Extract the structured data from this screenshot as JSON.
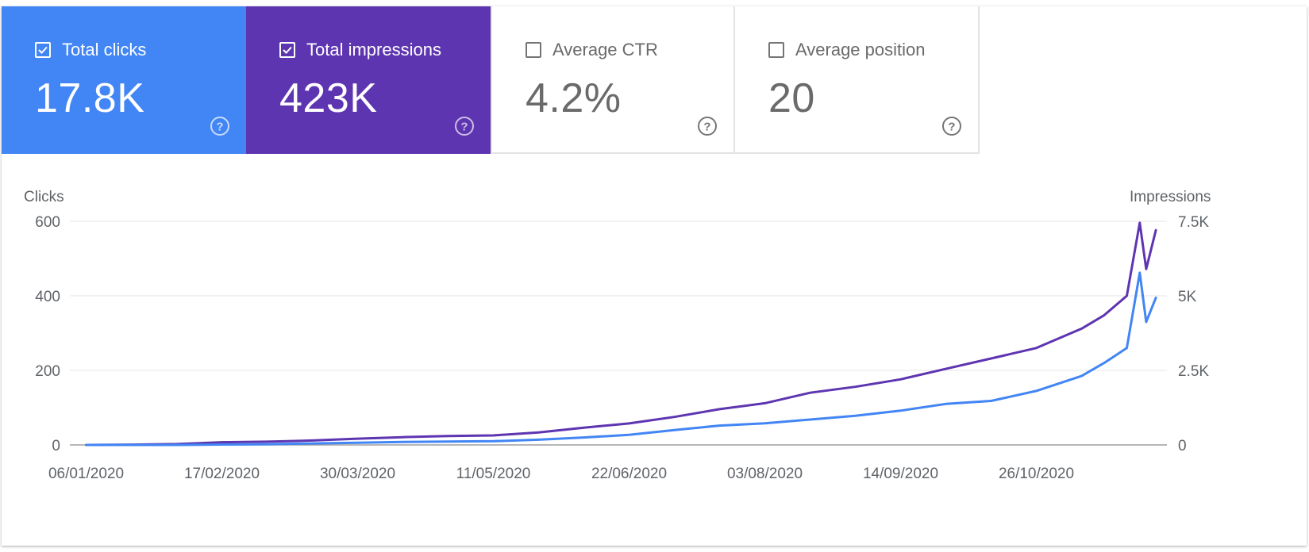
{
  "metrics": [
    {
      "label": "Total clicks",
      "value": "17.8K",
      "checked": true,
      "color": "#4285f4"
    },
    {
      "label": "Total impressions",
      "value": "423K",
      "checked": true,
      "color": "#5e35b1"
    },
    {
      "label": "Average CTR",
      "value": "4.2%",
      "checked": false
    },
    {
      "label": "Average position",
      "value": "20",
      "checked": false
    }
  ],
  "chart_data": {
    "type": "line",
    "ylabel_left": "Clicks",
    "ylabel_right": "Impressions",
    "y_left_ticks": [
      "0",
      "200",
      "400",
      "600"
    ],
    "y_right_ticks": [
      "0",
      "2.5K",
      "5K",
      "7.5K"
    ],
    "ylim_left": [
      0,
      600
    ],
    "ylim_right": [
      0,
      7500
    ],
    "x_ticks": [
      "06/01/2020",
      "17/02/2020",
      "30/03/2020",
      "11/05/2020",
      "22/06/2020",
      "03/08/2020",
      "14/09/2020",
      "26/10/2020"
    ],
    "x_range": [
      "06/01/2020",
      "02/12/2020"
    ],
    "grid": true,
    "series": [
      {
        "name": "Total clicks",
        "axis": "left",
        "color": "#4285f4",
        "points": [
          [
            "06/01/2020",
            0
          ],
          [
            "20/01/2020",
            0
          ],
          [
            "03/02/2020",
            0
          ],
          [
            "17/02/2020",
            1
          ],
          [
            "02/03/2020",
            2
          ],
          [
            "16/03/2020",
            4
          ],
          [
            "30/03/2020",
            6
          ],
          [
            "13/04/2020",
            8
          ],
          [
            "27/04/2020",
            9
          ],
          [
            "11/05/2020",
            10
          ],
          [
            "25/05/2020",
            14
          ],
          [
            "08/06/2020",
            20
          ],
          [
            "22/06/2020",
            27
          ],
          [
            "06/07/2020",
            40
          ],
          [
            "20/07/2020",
            52
          ],
          [
            "03/08/2020",
            58
          ],
          [
            "17/08/2020",
            68
          ],
          [
            "31/08/2020",
            78
          ],
          [
            "14/09/2020",
            92
          ],
          [
            "28/09/2020",
            110
          ],
          [
            "12/10/2020",
            118
          ],
          [
            "26/10/2020",
            145
          ],
          [
            "09/11/2020",
            185
          ],
          [
            "16/11/2020",
            220
          ],
          [
            "23/11/2020",
            260
          ],
          [
            "27/11/2020",
            462
          ],
          [
            "29/11/2020",
            330
          ],
          [
            "02/12/2020",
            395
          ]
        ]
      },
      {
        "name": "Total impressions",
        "axis": "right",
        "color": "#5e35b1",
        "points": [
          [
            "06/01/2020",
            0
          ],
          [
            "20/01/2020",
            10
          ],
          [
            "03/02/2020",
            30
          ],
          [
            "17/02/2020",
            90
          ],
          [
            "02/03/2020",
            110
          ],
          [
            "16/03/2020",
            150
          ],
          [
            "30/03/2020",
            210
          ],
          [
            "13/04/2020",
            260
          ],
          [
            "27/04/2020",
            300
          ],
          [
            "11/05/2020",
            320
          ],
          [
            "25/05/2020",
            420
          ],
          [
            "08/06/2020",
            580
          ],
          [
            "22/06/2020",
            720
          ],
          [
            "06/07/2020",
            940
          ],
          [
            "20/07/2020",
            1200
          ],
          [
            "03/08/2020",
            1400
          ],
          [
            "17/08/2020",
            1750
          ],
          [
            "31/08/2020",
            1950
          ],
          [
            "14/09/2020",
            2200
          ],
          [
            "28/09/2020",
            2550
          ],
          [
            "12/10/2020",
            2900
          ],
          [
            "26/10/2020",
            3250
          ],
          [
            "09/11/2020",
            3900
          ],
          [
            "16/11/2020",
            4350
          ],
          [
            "23/11/2020",
            5000
          ],
          [
            "27/11/2020",
            7450
          ],
          [
            "29/11/2020",
            5900
          ],
          [
            "02/12/2020",
            7200
          ]
        ]
      }
    ]
  }
}
